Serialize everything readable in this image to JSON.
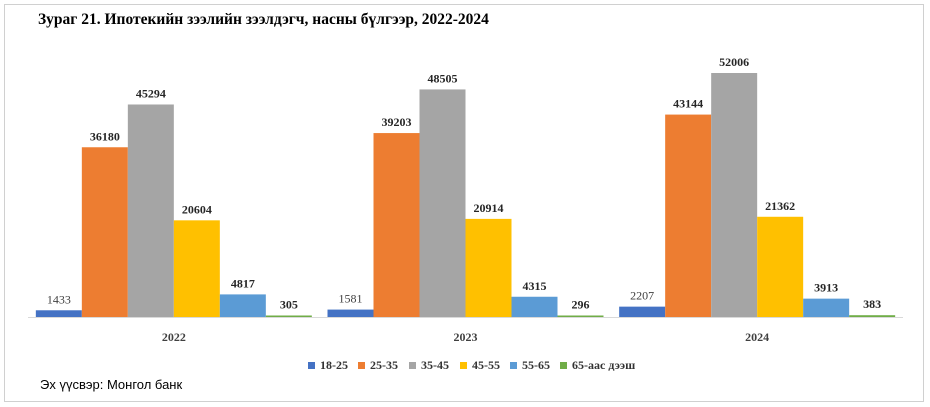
{
  "title": "Зураг 21. Ипотекийн зээлийн зээлдэгч, насны бүлгээр, 2022-2024",
  "source": "Эх үүсвэр: Монгол банк",
  "chart_data": {
    "type": "bar",
    "categories": [
      "2022",
      "2023",
      "2024"
    ],
    "series": [
      {
        "name": "18-25",
        "color": "#4472c4",
        "values": [
          1433,
          1581,
          2207
        ]
      },
      {
        "name": "25-35",
        "color": "#ed7d31",
        "values": [
          36180,
          39203,
          43144
        ]
      },
      {
        "name": "35-45",
        "color": "#a5a5a5",
        "values": [
          45294,
          48505,
          52006
        ]
      },
      {
        "name": "45-55",
        "color": "#ffc000",
        "values": [
          20604,
          20914,
          21362
        ]
      },
      {
        "name": "55-65",
        "color": "#5b9bd5",
        "values": [
          4817,
          4315,
          3913
        ]
      },
      {
        "name": "65-аас дээш",
        "color": "#70ad47",
        "values": [
          305,
          296,
          383
        ]
      }
    ],
    "title": "Зураг 21. Ипотекийн зээлийн зээлдэгч, насны бүлгээр, 2022-2024",
    "xlabel": "",
    "ylabel": "",
    "ylim": [
      0,
      60000
    ],
    "grid": false,
    "legend": "bottom"
  }
}
